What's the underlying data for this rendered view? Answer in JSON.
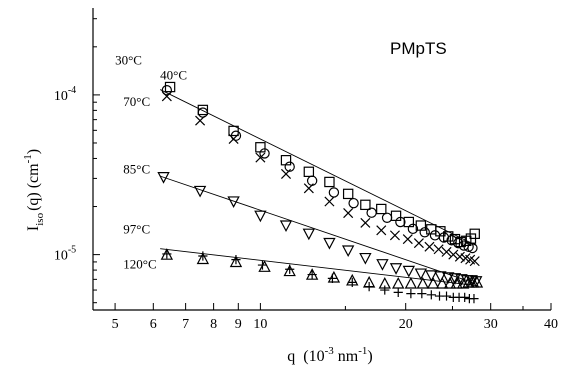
{
  "chart_data": {
    "type": "scatter",
    "title": "PMpTS",
    "xlabel": "q",
    "xlabel_unit": "(10",
    "xlabel_unit_exp": "-3",
    "xlabel_unit_tail": " nm",
    "xlabel_unit_exp2": "-1",
    "xlabel_unit_close": ")",
    "ylabel_main": "I",
    "ylabel_sub": "iso",
    "ylabel_rest": "(q)  (cm",
    "ylabel_exp": "-1",
    "ylabel_close": ")",
    "x_scale": "log",
    "y_scale": "log",
    "xlim": [
      4.5,
      40
    ],
    "ylim": [
      4.5e-06,
      0.00035
    ],
    "x_ticks": [
      {
        "value": 5,
        "label": "5"
      },
      {
        "value": 6,
        "label": "6"
      },
      {
        "value": 7,
        "label": "7"
      },
      {
        "value": 8,
        "label": "8"
      },
      {
        "value": 9,
        "label": "9"
      },
      {
        "value": 10,
        "label": "10"
      },
      {
        "value": 20,
        "label": "20"
      },
      {
        "value": 30,
        "label": "30"
      },
      {
        "value": 40,
        "label": "40"
      }
    ],
    "y_ticks": [
      {
        "value": 1e-05,
        "base": "10",
        "exp": "-5"
      },
      {
        "value": 0.0001,
        "base": "10",
        "exp": "-4"
      }
    ],
    "grid": false,
    "series": [
      {
        "name": "40°C",
        "marker": "square",
        "x": [
          6.5,
          7.6,
          8.8,
          10.0,
          11.3,
          12.6,
          13.9,
          15.2,
          16.5,
          17.8,
          19.1,
          20.3,
          21.5,
          22.6,
          23.6,
          24.5,
          25.3,
          26.0,
          26.7,
          27.3,
          27.8
        ],
        "y": [
          0.000112,
          8.05e-05,
          5.95e-05,
          4.7e-05,
          3.9e-05,
          3.3e-05,
          2.85e-05,
          2.4e-05,
          2.05e-05,
          1.93e-05,
          1.75e-05,
          1.6e-05,
          1.52e-05,
          1.44e-05,
          1.4e-05,
          1.3e-05,
          1.25e-05,
          1.2e-05,
          1.22e-05,
          1.26e-05,
          1.35e-05
        ]
      },
      {
        "name": "30°C",
        "marker": "circle",
        "x": [
          6.4,
          7.6,
          8.9,
          10.2,
          11.5,
          12.8,
          14.2,
          15.6,
          17.0,
          18.3,
          19.5,
          20.7,
          21.9,
          23.0,
          24.0,
          24.9,
          25.7,
          26.4,
          27.0,
          27.5
        ],
        "y": [
          0.000107,
          7.75e-05,
          5.55e-05,
          4.3e-05,
          3.55e-05,
          2.9e-05,
          2.45e-05,
          2.1e-05,
          1.83e-05,
          1.7e-05,
          1.6e-05,
          1.45e-05,
          1.38e-05,
          1.32e-05,
          1.28e-05,
          1.23e-05,
          1.18e-05,
          1.14e-05,
          1.12e-05,
          1.1e-05
        ]
      },
      {
        "name": "70°C",
        "marker": "x",
        "x": [
          6.4,
          7.5,
          8.8,
          10.0,
          11.3,
          12.6,
          13.9,
          15.2,
          16.5,
          17.8,
          19.0,
          20.2,
          21.3,
          22.4,
          23.4,
          24.3,
          25.1,
          25.9,
          26.6,
          27.2,
          27.8
        ],
        "y": [
          9.8e-05,
          6.9e-05,
          5.3e-05,
          4.05e-05,
          3.2e-05,
          2.6e-05,
          2.15e-05,
          1.82e-05,
          1.58e-05,
          1.42e-05,
          1.32e-05,
          1.25e-05,
          1.18e-05,
          1.12e-05,
          1.08e-05,
          1.04e-05,
          1e-05,
          9.7e-06,
          9.5e-06,
          9.3e-06,
          9.1e-06
        ]
      },
      {
        "name": "85°C",
        "marker": "triangle-down",
        "x": [
          6.3,
          7.5,
          8.8,
          10.0,
          11.3,
          12.6,
          13.9,
          15.2,
          16.5,
          17.9,
          19.1,
          20.3,
          21.5,
          22.6,
          23.6,
          24.5,
          25.3,
          26.1,
          26.8,
          27.4,
          28.0
        ],
        "y": [
          3.05e-05,
          2.5e-05,
          2.15e-05,
          1.75e-05,
          1.52e-05,
          1.35e-05,
          1.18e-05,
          1.06e-05,
          9.5e-06,
          8.7e-06,
          8.2e-06,
          7.9e-06,
          7.6e-06,
          7.4e-06,
          7.3e-06,
          7.2e-06,
          7.1e-06,
          7e-06,
          6.9e-06,
          6.9e-06,
          6.8e-06
        ]
      },
      {
        "name": "97°C",
        "marker": "triangle-up",
        "x": [
          6.4,
          7.6,
          8.9,
          10.2,
          11.5,
          12.8,
          14.2,
          15.5,
          16.8,
          18.1,
          19.3,
          20.5,
          21.7,
          22.8,
          23.8,
          24.7,
          25.5,
          26.3,
          27.0,
          27.6,
          28.1
        ],
        "y": [
          1e-05,
          9.4e-06,
          9e-06,
          8.4e-06,
          7.9e-06,
          7.5e-06,
          7.2e-06,
          6.9e-06,
          6.7e-06,
          6.6e-06,
          6.6e-06,
          6.6e-06,
          6.6e-06,
          6.6e-06,
          6.6e-06,
          6.6e-06,
          6.6e-06,
          6.6e-06,
          6.7e-06,
          6.7e-06,
          6.7e-06
        ]
      },
      {
        "name": "120°C",
        "marker": "plus",
        "x": [
          6.4,
          7.6,
          8.9,
          10.1,
          11.5,
          12.8,
          14.1,
          15.5,
          16.8,
          18.1,
          19.3,
          20.5,
          21.6,
          22.6,
          23.5,
          24.3,
          25.1,
          25.8,
          26.5,
          27.1,
          27.7
        ],
        "y": [
          1.01e-05,
          9.8e-06,
          9.3e-06,
          8.6e-06,
          8.1e-06,
          7.5e-06,
          7.1e-06,
          6.7e-06,
          6.3e-06,
          6e-06,
          5.8e-06,
          5.7e-06,
          5.7e-06,
          5.6e-06,
          5.5e-06,
          5.5e-06,
          5.4e-06,
          5.4e-06,
          5.4e-06,
          5.3e-06,
          5.3e-06
        ]
      }
    ],
    "fit_lines": [
      {
        "x": [
          6.2,
          28.0
        ],
        "y": [
          0.000108,
          1.14e-05
        ]
      },
      {
        "x": [
          6.2,
          27.5
        ],
        "y": [
          3.1e-05,
          6.7e-06
        ]
      },
      {
        "x": [
          6.2,
          28.0
        ],
        "y": [
          1.09e-05,
          6.4e-06
        ]
      }
    ],
    "annotations": [
      {
        "text": "30°C",
        "x": 5.0,
        "y": 0.000155
      },
      {
        "text": "40°C",
        "x": 6.2,
        "y": 0.000125
      },
      {
        "text": "70°C",
        "x": 5.2,
        "y": 8.5e-05
      },
      {
        "text": "85°C",
        "x": 5.2,
        "y": 3.22e-05
      },
      {
        "text": "97°C",
        "x": 5.2,
        "y": 1.36e-05
      },
      {
        "text": "120°C",
        "x": 5.2,
        "y": 8.2e-06
      }
    ]
  }
}
